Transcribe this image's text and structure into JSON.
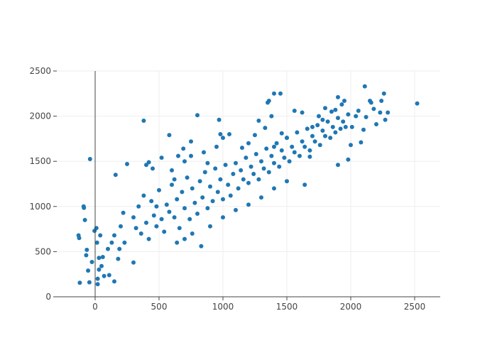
{
  "chart_data": {
    "type": "scatter",
    "title": "",
    "xlabel": "",
    "ylabel": "",
    "xlim": [
      -300,
      2700
    ],
    "ylim": [
      0,
      2500
    ],
    "xticks": [
      0,
      500,
      1000,
      1500,
      2000,
      2500
    ],
    "xtick_labels": [
      "0",
      "500",
      "1000",
      "1500",
      "2000",
      "2500"
    ],
    "yticks": [
      0,
      500,
      1000,
      1500,
      2000,
      2500
    ],
    "ytick_labels": [
      "0",
      "500",
      "1000",
      "1500",
      "2000",
      "2500"
    ],
    "grid": true,
    "legend": "none",
    "marker_color": "#1f77b4",
    "grid_color": "#eeeeee",
    "axis_color": "#444444",
    "series": [
      {
        "points": [
          [
            -130,
            680
          ],
          [
            -125,
            650
          ],
          [
            -120,
            155
          ],
          [
            -90,
            1000
          ],
          [
            -88,
            985
          ],
          [
            -80,
            850
          ],
          [
            -70,
            460
          ],
          [
            -65,
            520
          ],
          [
            -55,
            290
          ],
          [
            -45,
            160
          ],
          [
            -40,
            1525
          ],
          [
            -25,
            385
          ],
          [
            -5,
            730
          ],
          [
            10,
            760
          ],
          [
            15,
            600
          ],
          [
            20,
            140
          ],
          [
            20,
            200
          ],
          [
            30,
            300
          ],
          [
            30,
            430
          ],
          [
            40,
            680
          ],
          [
            50,
            340
          ],
          [
            60,
            440
          ],
          [
            70,
            230
          ],
          [
            100,
            530
          ],
          [
            110,
            240
          ],
          [
            130,
            600
          ],
          [
            150,
            680
          ],
          [
            150,
            170
          ],
          [
            160,
            1350
          ],
          [
            180,
            420
          ],
          [
            190,
            530
          ],
          [
            200,
            780
          ],
          [
            220,
            930
          ],
          [
            250,
            1470
          ],
          [
            230,
            600
          ],
          [
            300,
            380
          ],
          [
            380,
            1950
          ],
          [
            400,
            1460
          ],
          [
            420,
            1490
          ],
          [
            450,
            1420
          ],
          [
            480,
            1000
          ],
          [
            520,
            1540
          ],
          [
            580,
            1790
          ],
          [
            620,
            1300
          ],
          [
            650,
            1560
          ],
          [
            690,
            1640
          ],
          [
            750,
            1720
          ],
          [
            800,
            2010
          ],
          [
            830,
            560
          ],
          [
            880,
            1480
          ],
          [
            970,
            1960
          ],
          [
            980,
            1800
          ],
          [
            1000,
            1760
          ],
          [
            1050,
            1800
          ],
          [
            1150,
            1650
          ],
          [
            1200,
            1700
          ],
          [
            1250,
            1790
          ],
          [
            1280,
            1950
          ],
          [
            1330,
            1870
          ],
          [
            1350,
            2150
          ],
          [
            1360,
            2170
          ],
          [
            1380,
            2000
          ],
          [
            1400,
            2250
          ],
          [
            1400,
            1660
          ],
          [
            1450,
            2250
          ],
          [
            1460,
            1810
          ],
          [
            1500,
            1760
          ],
          [
            1560,
            2060
          ],
          [
            1620,
            2040
          ],
          [
            1640,
            1240
          ],
          [
            1680,
            1550
          ],
          [
            1700,
            1880
          ],
          [
            1750,
            2000
          ],
          [
            1780,
            1960
          ],
          [
            1800,
            2090
          ],
          [
            1850,
            2050
          ],
          [
            1880,
            2070
          ],
          [
            1900,
            1460
          ],
          [
            1900,
            2210
          ],
          [
            1930,
            2130
          ],
          [
            1950,
            2170
          ],
          [
            1980,
            1520
          ],
          [
            2000,
            1680
          ],
          [
            2010,
            1880
          ],
          [
            2040,
            2000
          ],
          [
            2060,
            2060
          ],
          [
            2080,
            1710
          ],
          [
            2100,
            1850
          ],
          [
            2110,
            2330
          ],
          [
            2120,
            1990
          ],
          [
            2150,
            2170
          ],
          [
            2160,
            2150
          ],
          [
            2180,
            2080
          ],
          [
            2200,
            1910
          ],
          [
            2230,
            2040
          ],
          [
            2240,
            2170
          ],
          [
            2260,
            2250
          ],
          [
            2270,
            1960
          ],
          [
            2290,
            2040
          ],
          [
            2520,
            2140
          ],
          [
            300,
            880
          ],
          [
            320,
            760
          ],
          [
            340,
            1000
          ],
          [
            360,
            700
          ],
          [
            380,
            1120
          ],
          [
            400,
            820
          ],
          [
            420,
            640
          ],
          [
            440,
            1060
          ],
          [
            460,
            900
          ],
          [
            480,
            780
          ],
          [
            500,
            1180
          ],
          [
            520,
            860
          ],
          [
            540,
            720
          ],
          [
            560,
            1020
          ],
          [
            580,
            940
          ],
          [
            600,
            1240
          ],
          [
            620,
            880
          ],
          [
            640,
            1080
          ],
          [
            660,
            760
          ],
          [
            680,
            1160
          ],
          [
            700,
            980
          ],
          [
            720,
            1320
          ],
          [
            740,
            860
          ],
          [
            760,
            1200
          ],
          [
            780,
            1040
          ],
          [
            800,
            920
          ],
          [
            820,
            1280
          ],
          [
            840,
            1100
          ],
          [
            860,
            1380
          ],
          [
            880,
            980
          ],
          [
            900,
            1220
          ],
          [
            920,
            1060
          ],
          [
            940,
            1420
          ],
          [
            960,
            1160
          ],
          [
            980,
            1300
          ],
          [
            1000,
            1080
          ],
          [
            1020,
            1460
          ],
          [
            1040,
            1240
          ],
          [
            1060,
            1120
          ],
          [
            1080,
            1360
          ],
          [
            1100,
            1480
          ],
          [
            1120,
            1200
          ],
          [
            1140,
            1400
          ],
          [
            1160,
            1300
          ],
          [
            1180,
            1540
          ],
          [
            1200,
            1260
          ],
          [
            1220,
            1440
          ],
          [
            1240,
            1360
          ],
          [
            1260,
            1580
          ],
          [
            1280,
            1300
          ],
          [
            1300,
            1500
          ],
          [
            1320,
            1420
          ],
          [
            1340,
            1640
          ],
          [
            1360,
            1380
          ],
          [
            1380,
            1560
          ],
          [
            1400,
            1480
          ],
          [
            1420,
            1700
          ],
          [
            1440,
            1440
          ],
          [
            1460,
            1620
          ],
          [
            1480,
            1540
          ],
          [
            1500,
            1760
          ],
          [
            1520,
            1500
          ],
          [
            1540,
            1660
          ],
          [
            1560,
            1600
          ],
          [
            1580,
            1820
          ],
          [
            1600,
            1560
          ],
          [
            1620,
            1720
          ],
          [
            1640,
            1660
          ],
          [
            1660,
            1860
          ],
          [
            1680,
            1620
          ],
          [
            1700,
            1780
          ],
          [
            1720,
            1720
          ],
          [
            1740,
            1900
          ],
          [
            1760,
            1680
          ],
          [
            1780,
            1840
          ],
          [
            1800,
            1780
          ],
          [
            1820,
            1940
          ],
          [
            1840,
            1760
          ],
          [
            1860,
            1880
          ],
          [
            1880,
            1820
          ],
          [
            1900,
            1980
          ],
          [
            1920,
            1860
          ],
          [
            1940,
            1940
          ],
          [
            1960,
            1880
          ],
          [
            1980,
            2020
          ],
          [
            640,
            600
          ],
          [
            700,
            640
          ],
          [
            760,
            700
          ],
          [
            900,
            780
          ],
          [
            1000,
            880
          ],
          [
            1100,
            960
          ],
          [
            1200,
            1020
          ],
          [
            1300,
            1100
          ],
          [
            1400,
            1200
          ],
          [
            1500,
            1280
          ],
          [
            600,
            1400
          ],
          [
            700,
            1500
          ],
          [
            750,
            1560
          ],
          [
            850,
            1600
          ],
          [
            950,
            1660
          ]
        ]
      }
    ]
  }
}
